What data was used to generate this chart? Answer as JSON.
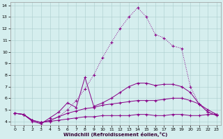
{
  "title": "",
  "xlabel": "Windchill (Refroidissement éolien,°C)",
  "ylabel": "",
  "background_color": "#d5eeee",
  "line_color": "#880088",
  "xlim": [
    -0.5,
    23.5
  ],
  "ylim": [
    3.7,
    14.3
  ],
  "xticks": [
    0,
    1,
    2,
    3,
    4,
    5,
    6,
    7,
    8,
    9,
    10,
    11,
    12,
    13,
    14,
    15,
    16,
    17,
    18,
    19,
    20,
    21,
    22,
    23
  ],
  "yticks": [
    4,
    5,
    6,
    7,
    8,
    9,
    10,
    11,
    12,
    13,
    14
  ],
  "curves": [
    {
      "linestyle": ":",
      "x": [
        0,
        1,
        2,
        3,
        4,
        5,
        6,
        7,
        8,
        9,
        10,
        11,
        12,
        13,
        14,
        15,
        16,
        17,
        18,
        19,
        20,
        21,
        22,
        23
      ],
      "y": [
        4.7,
        4.6,
        4.1,
        3.9,
        4.0,
        4.4,
        5.0,
        5.8,
        6.8,
        8.0,
        9.5,
        10.8,
        12.0,
        13.0,
        13.8,
        13.0,
        11.5,
        11.2,
        10.5,
        10.3,
        7.0,
        5.5,
        4.8,
        4.6
      ]
    },
    {
      "linestyle": "-",
      "x": [
        0,
        1,
        2,
        3,
        4,
        5,
        6,
        7,
        8,
        9,
        10,
        11,
        12,
        13,
        14,
        15,
        16,
        17,
        18,
        19,
        20,
        21,
        22,
        23
      ],
      "y": [
        4.7,
        4.6,
        4.0,
        3.8,
        4.3,
        4.8,
        5.6,
        5.2,
        7.8,
        5.3,
        5.6,
        6.0,
        6.5,
        7.0,
        7.3,
        7.3,
        7.1,
        7.2,
        7.2,
        7.0,
        6.5,
        5.5,
        4.8,
        4.5
      ]
    },
    {
      "linestyle": "-",
      "x": [
        0,
        1,
        2,
        3,
        4,
        5,
        6,
        7,
        8,
        9,
        10,
        11,
        12,
        13,
        14,
        15,
        16,
        17,
        18,
        19,
        20,
        21,
        22,
        23
      ],
      "y": [
        4.7,
        4.6,
        4.1,
        3.9,
        4.1,
        4.4,
        4.7,
        4.9,
        5.1,
        5.2,
        5.4,
        5.5,
        5.6,
        5.7,
        5.8,
        5.8,
        5.8,
        5.9,
        6.0,
        6.0,
        5.8,
        5.5,
        5.0,
        4.6
      ]
    },
    {
      "linestyle": "-",
      "x": [
        0,
        1,
        2,
        3,
        4,
        5,
        6,
        7,
        8,
        9,
        10,
        11,
        12,
        13,
        14,
        15,
        16,
        17,
        18,
        19,
        20,
        21,
        22,
        23
      ],
      "y": [
        4.7,
        4.6,
        4.1,
        3.9,
        4.0,
        4.1,
        4.2,
        4.3,
        4.4,
        4.4,
        4.5,
        4.5,
        4.5,
        4.5,
        4.6,
        4.6,
        4.5,
        4.5,
        4.6,
        4.6,
        4.5,
        4.5,
        4.6,
        4.6
      ]
    }
  ]
}
